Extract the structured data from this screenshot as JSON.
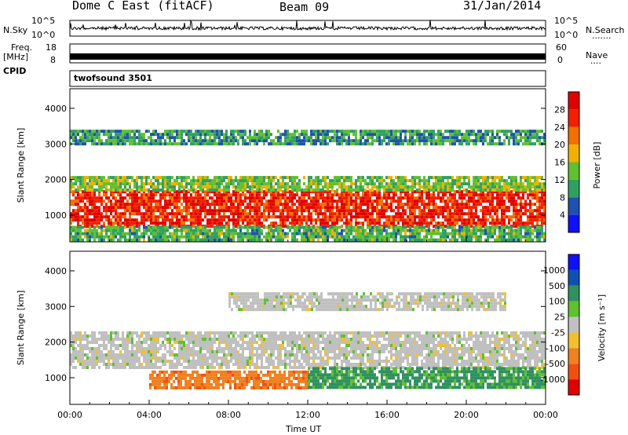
{
  "header": {
    "station": "Dome C East (fitACF)",
    "beam": "Beam 09",
    "date": "31/Jan/2014"
  },
  "strip_labels": {
    "nsky": "N.Sky",
    "nsky_ticks": [
      "10^5",
      "10^0"
    ],
    "nsearch": "N.Search",
    "nsearch_dots": "·······",
    "freq": "Freq.",
    "freq_unit": "[MHz]",
    "freq_ticks": [
      "18",
      "8"
    ],
    "nave": "Nave",
    "nave_dots": "····",
    "nave_ticks": [
      "60",
      "0"
    ],
    "cpid": "CPID",
    "cpid_value": "twofsound 3501"
  },
  "colors": {
    "power_scale": [
      "#1010ff",
      "#2050b0",
      "#30a060",
      "#60c030",
      "#f0b000",
      "#f07000",
      "#f02000",
      "#e00000"
    ],
    "velocity_scale": [
      "#e00000",
      "#f05010",
      "#f08020",
      "#f0c030",
      "#c0c0c0",
      "#60c030",
      "#309060",
      "#1050b0",
      "#1010ff"
    ]
  },
  "chart_data": [
    {
      "type": "heatmap",
      "panel": "power",
      "ylabel": "Slant Range [km]",
      "ylim": [
        250,
        4550
      ],
      "yticks": [
        1000,
        2000,
        3000,
        4000
      ],
      "xlabel": "Time UT",
      "xlim_hours": [
        0,
        24
      ],
      "xtick_labels": [
        "00:00",
        "04:00",
        "08:00",
        "12:00",
        "16:00",
        "20:00",
        "00:00"
      ],
      "colorbar": {
        "label": "Power [dB]",
        "ticks": [
          "4",
          "8",
          "12",
          "16",
          "20",
          "24",
          "28"
        ],
        "range": [
          0,
          32
        ]
      },
      "bands": [
        {
          "range_km": [
            700,
            1700
          ],
          "hours": [
            0,
            24
          ],
          "power_db": 27
        },
        {
          "range_km": [
            1700,
            2100
          ],
          "hours": [
            0,
            24
          ],
          "power_db": 14
        },
        {
          "range_km": [
            3000,
            3400
          ],
          "hours": [
            0,
            24
          ],
          "power_db": 10
        },
        {
          "range_km": [
            300,
            700
          ],
          "hours": [
            0,
            24
          ],
          "power_db": 12
        }
      ]
    },
    {
      "type": "heatmap",
      "panel": "velocity",
      "ylabel": "Slant Range [km]",
      "ylim": [
        250,
        4550
      ],
      "yticks": [
        1000,
        2000,
        3000,
        4000
      ],
      "xlabel": "Time UT",
      "xlim_hours": [
        0,
        24
      ],
      "xtick_labels": [
        "00:00",
        "04:00",
        "08:00",
        "12:00",
        "16:00",
        "20:00",
        "00:00"
      ],
      "colorbar": {
        "label": "Velocity [m s⁻¹]",
        "ticks": [
          "1000",
          "500",
          "100",
          "25",
          "-25",
          "-100",
          "-500",
          "-1000"
        ]
      },
      "bands": [
        {
          "range_km": [
            1300,
            2300
          ],
          "hours": [
            0,
            24
          ],
          "velocity": 0
        },
        {
          "range_km": [
            700,
            1200
          ],
          "hours": [
            4,
            12
          ],
          "velocity": -300
        },
        {
          "range_km": [
            700,
            1300
          ],
          "hours": [
            12,
            24
          ],
          "velocity": 200
        },
        {
          "range_km": [
            2900,
            3400
          ],
          "hours": [
            8,
            22
          ],
          "velocity": 0
        }
      ]
    }
  ],
  "xaxis": {
    "label": "Time UT",
    "ticks": [
      "00:00",
      "04:00",
      "08:00",
      "12:00",
      "16:00",
      "20:00",
      "00:00"
    ]
  }
}
